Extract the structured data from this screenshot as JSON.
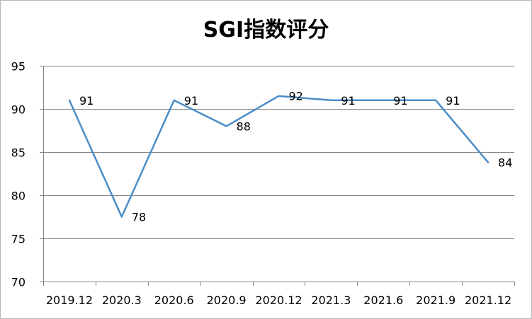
{
  "chart_data": {
    "type": "line",
    "title": "SGI指数评分",
    "xlabel": "",
    "ylabel": "",
    "categories": [
      "2019.12",
      "2020.3",
      "2020.6",
      "2020.9",
      "2020.12",
      "2021.3",
      "2021.6",
      "2021.9",
      "2021.12"
    ],
    "series": [
      {
        "values": [
          91,
          77.5,
          91,
          88,
          91.5,
          91,
          91,
          91,
          83.8
        ],
        "data_labels": [
          "91",
          "78",
          "91",
          "88",
          "92",
          "91",
          "91",
          "91",
          "84"
        ]
      }
    ],
    "ylim": [
      70,
      95
    ],
    "yticks": [
      "70",
      "75",
      "80",
      "85",
      "90",
      "95"
    ],
    "grid": true,
    "legend": "none",
    "colors": {
      "line": "#4a8cc6",
      "grid": "#868686",
      "axis": "#868686"
    }
  }
}
